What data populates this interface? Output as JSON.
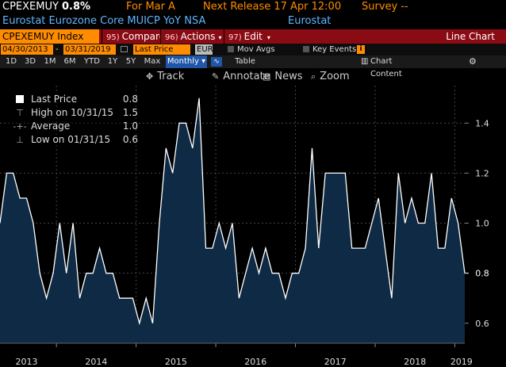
{
  "header": {
    "ticker": "CPEXEMUY",
    "value": "0.8%",
    "for_label": "For Mar A",
    "next_release": "Next Release 17 Apr 12:00",
    "survey": "Survey --",
    "description": "Eurostat Eurozone Core MUICP YoY NSA",
    "source": "Eurostat"
  },
  "toolbar": {
    "ticker_field": "CPEXEMUY Index",
    "compare": {
      "num": "95)",
      "label": "Compare"
    },
    "actions": {
      "num": "96)",
      "label": "Actions"
    },
    "edit": {
      "num": "97)",
      "label": "Edit"
    },
    "chart_type": "Line Chart"
  },
  "controls": {
    "start_date": "04/30/2013",
    "end_date": "03/31/2019",
    "field": "Last Price",
    "currency": "EUR",
    "mov_avgs": "Mov Avgs",
    "key_events": "Key Events"
  },
  "periods": [
    "1D",
    "3D",
    "1M",
    "6M",
    "YTD",
    "1Y",
    "5Y",
    "Max"
  ],
  "frequency": "Monthly",
  "table_label": "Table",
  "chart_content_label": "Chart Content",
  "tools": {
    "track": "Track",
    "annotate": "Annotate",
    "news": "News",
    "zoom": "Zoom"
  },
  "legend": {
    "last": {
      "label": "Last Price",
      "value": "0.8"
    },
    "high": {
      "label": "High on 10/31/15",
      "value": "1.5"
    },
    "average": {
      "label": "Average",
      "value": "1.0"
    },
    "low": {
      "label": "Low on 01/31/15",
      "value": "0.6"
    }
  },
  "colors": {
    "line": "#ffffff",
    "fill": "#0e2a44",
    "accent": "#ff8c00",
    "toolbar_red": "#8b0b14",
    "link_blue": "#5fb6ff"
  },
  "chart_data": {
    "type": "area",
    "x_start": "2013-04",
    "x_end": "2019-03",
    "x_tick_labels": [
      "2013",
      "2014",
      "2015",
      "2016",
      "2017",
      "2018",
      "2019"
    ],
    "y_ticks": [
      "1.4",
      "1.2",
      "1.0",
      "0.8",
      "0.6"
    ],
    "ylim": [
      0.52,
      1.55
    ],
    "last_value_label": "0.8",
    "grid": true,
    "series": [
      {
        "values": [
          1.0,
          1.2,
          1.2,
          1.1,
          1.1,
          1.0,
          0.8,
          0.7,
          0.8,
          1.0,
          0.8,
          1.0,
          0.7,
          0.8,
          0.8,
          0.9,
          0.8,
          0.8,
          0.7,
          0.7,
          0.7,
          0.6,
          0.7,
          0.6,
          1.0,
          1.3,
          1.2,
          1.4,
          1.4,
          1.3,
          1.5,
          0.9,
          0.9,
          1.0,
          0.9,
          1.0,
          0.7,
          0.8,
          0.9,
          0.8,
          0.9,
          0.8,
          0.8,
          0.7,
          0.8,
          0.8,
          0.9,
          1.3,
          0.9,
          1.2,
          1.2,
          1.2,
          1.2,
          0.9,
          0.9,
          0.9,
          1.0,
          1.1,
          0.9,
          0.7,
          1.2,
          1.0,
          1.1,
          1.0,
          1.0,
          1.2,
          0.9,
          0.9,
          1.1,
          1.0,
          0.8
        ]
      }
    ]
  }
}
